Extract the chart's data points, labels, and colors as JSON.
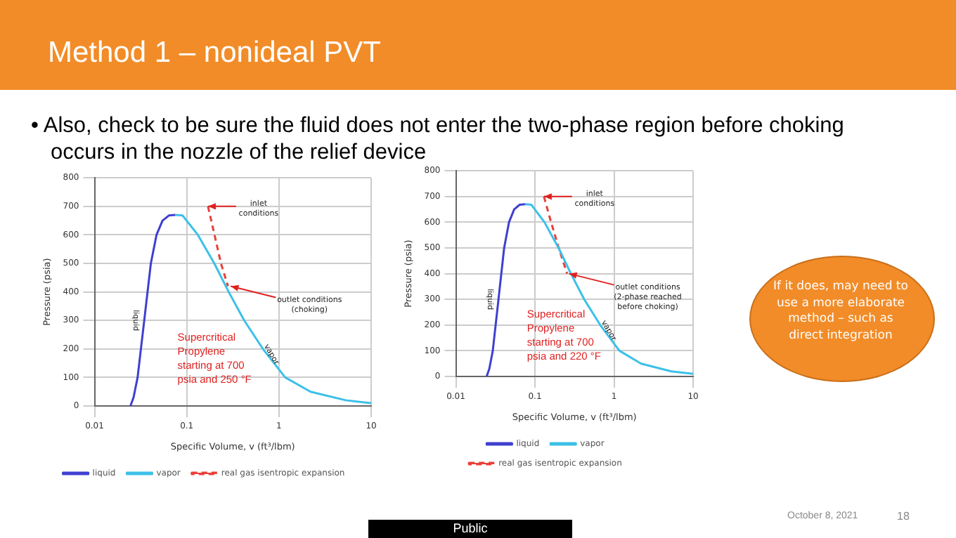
{
  "chart_data": [
    {
      "type": "line",
      "title": "Method 1 – nonideal PVT",
      "subtitle": "• Also, check to be sure the fluid does not enter the two-phase region before choking occurs in the nozzle of the relief device",
      "xlabel": "Specific Volume, v (ft³/lbm)",
      "ylabel": "Pressure (psia)",
      "log": "x",
      "xlim": [
        0.01,
        10
      ],
      "xticks": [
        0.01,
        0.1,
        1,
        10
      ],
      "ylim": [
        0,
        800
      ],
      "yticks": [
        0,
        100,
        200,
        300,
        400,
        500,
        600,
        700,
        800
      ],
      "grid": true,
      "legend": "bottom",
      "marker": "none",
      "series": [
        {
          "name": "liquid",
          "color": "#3f3fd0",
          "x": [
            0.0245,
            0.0265,
            0.0293,
            0.0346,
            0.0408,
            0.047,
            0.0546,
            0.064,
            0.075
          ],
          "values": [
            0,
            30,
            100,
            300,
            500,
            600,
            650,
            668,
            670
          ]
        },
        {
          "name": "vapor",
          "color": "#3cc0e8",
          "x": [
            0.075,
            0.09,
            0.132,
            0.199,
            0.285,
            0.42,
            0.67,
            1.17,
            2.2,
            5.3,
            10
          ],
          "values": [
            670,
            668,
            600,
            500,
            400,
            300,
            200,
            100,
            50,
            20,
            10
          ]
        },
        {
          "name": "real gas isentropic expansion",
          "color": "#e8403a",
          "line_style": "dashed",
          "x": [
            0.17,
            0.2,
            0.235,
            0.28
          ],
          "values": [
            700,
            600,
            500,
            420
          ]
        }
      ],
      "annotations": [
        {
          "text": "inlet conditions",
          "x": 0.17,
          "y": 700
        },
        {
          "text": "outlet conditions (choking)",
          "x": 0.3,
          "y": 420
        },
        "Supercritical Propylene starting at 700 psia and 250 °F",
        "If it does, may need to use a more elaborate method – such as direct integration",
        "October 8, 2021",
        "18",
        "Public"
      ]
    },
    {
      "type": "line",
      "xlabel": "Specific Volume, v (ft³/lbm)",
      "ylabel": "Pressure (psia)",
      "log": "x",
      "xlim": [
        0.01,
        10
      ],
      "xticks": [
        0.01,
        0.1,
        1,
        10
      ],
      "ylim": [
        0,
        800
      ],
      "yticks": [
        0,
        100,
        200,
        300,
        400,
        500,
        600,
        700,
        800
      ],
      "grid": true,
      "legend": "bottom",
      "marker": "none",
      "series": [
        {
          "name": "liquid",
          "color": "#3f3fd0",
          "x": [
            0.0245,
            0.0265,
            0.0293,
            0.0346,
            0.0408,
            0.047,
            0.0546,
            0.064,
            0.075
          ],
          "values": [
            0,
            30,
            100,
            300,
            500,
            600,
            650,
            668,
            670
          ]
        },
        {
          "name": "vapor",
          "color": "#3cc0e8",
          "x": [
            0.075,
            0.09,
            0.132,
            0.199,
            0.285,
            0.42,
            0.67,
            1.17,
            2.2,
            5.3,
            10
          ],
          "values": [
            670,
            668,
            600,
            500,
            400,
            300,
            200,
            100,
            50,
            20,
            10
          ]
        },
        {
          "name": "real gas isentropic expansion",
          "color": "#e8403a",
          "line_style": "dashed",
          "x": [
            0.13,
            0.16,
            0.2,
            0.255
          ],
          "values": [
            700,
            600,
            500,
            400
          ]
        }
      ],
      "annotations": [
        {
          "text": "inlet conditions",
          "x": 0.13,
          "y": 700
        },
        {
          "text": "outlet conditions (2-phase reached before choking)",
          "x": 0.27,
          "y": 400
        },
        "Supercritical Propylene starting at 700 psia and 220 °F"
      ]
    }
  ]
}
